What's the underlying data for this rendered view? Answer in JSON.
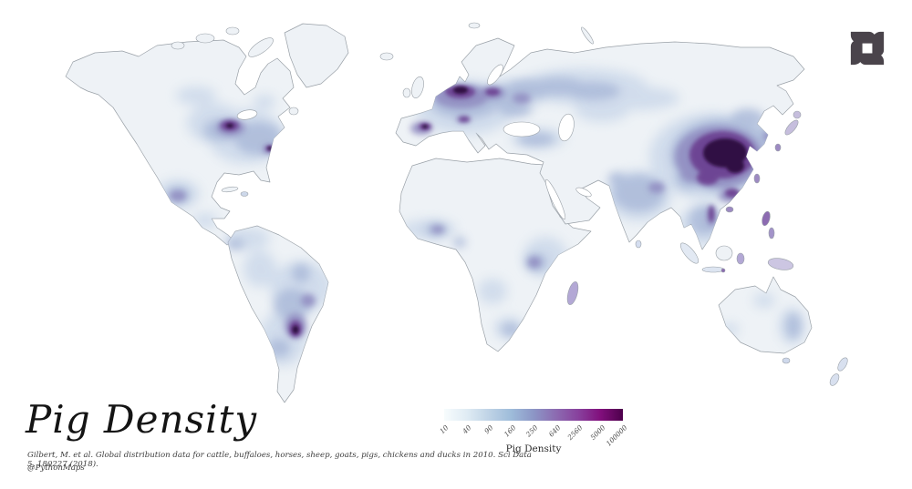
{
  "title": "Pig Density",
  "citation": "Gilbert, M. et al. Global distribution data for cattle, buffaloes, horses, sheep, goats, pigs, chickens and ducks in 2010. Sci Data 5, 180227 (2018).",
  "handle": "@PythonMaps",
  "legend": {
    "label": "Pig Density",
    "ticks": [
      "10",
      "40",
      "90",
      "160",
      "250",
      "640",
      "2560",
      "5000",
      "100000"
    ],
    "colors": [
      "#f7fcfd",
      "#e0ecf4",
      "#bfd3e6",
      "#9ebcda",
      "#8c96c6",
      "#8c6bb1",
      "#88419d",
      "#810f7c",
      "#4d004b"
    ]
  },
  "logo": {
    "name": "pythonmaps-logo",
    "color": "#4a444b"
  },
  "map": {
    "name": "world-pig-density-map",
    "colors": {
      "land": "#eef2f6",
      "coast": "#99a0a7",
      "low": "#ccd9ea",
      "midlow": "#a9b8d8",
      "mid": "#8f8ac0",
      "high": "#6a3d8f",
      "max": "#2e0c40"
    },
    "high_density_regions": [
      "Eastern China",
      "Northwestern Europe",
      "Spain",
      "Southern Brazil",
      "US Midwest",
      "Eastern North Carolina",
      "Central Mexico",
      "Vietnam",
      "Philippines",
      "Korea and Japan"
    ]
  }
}
